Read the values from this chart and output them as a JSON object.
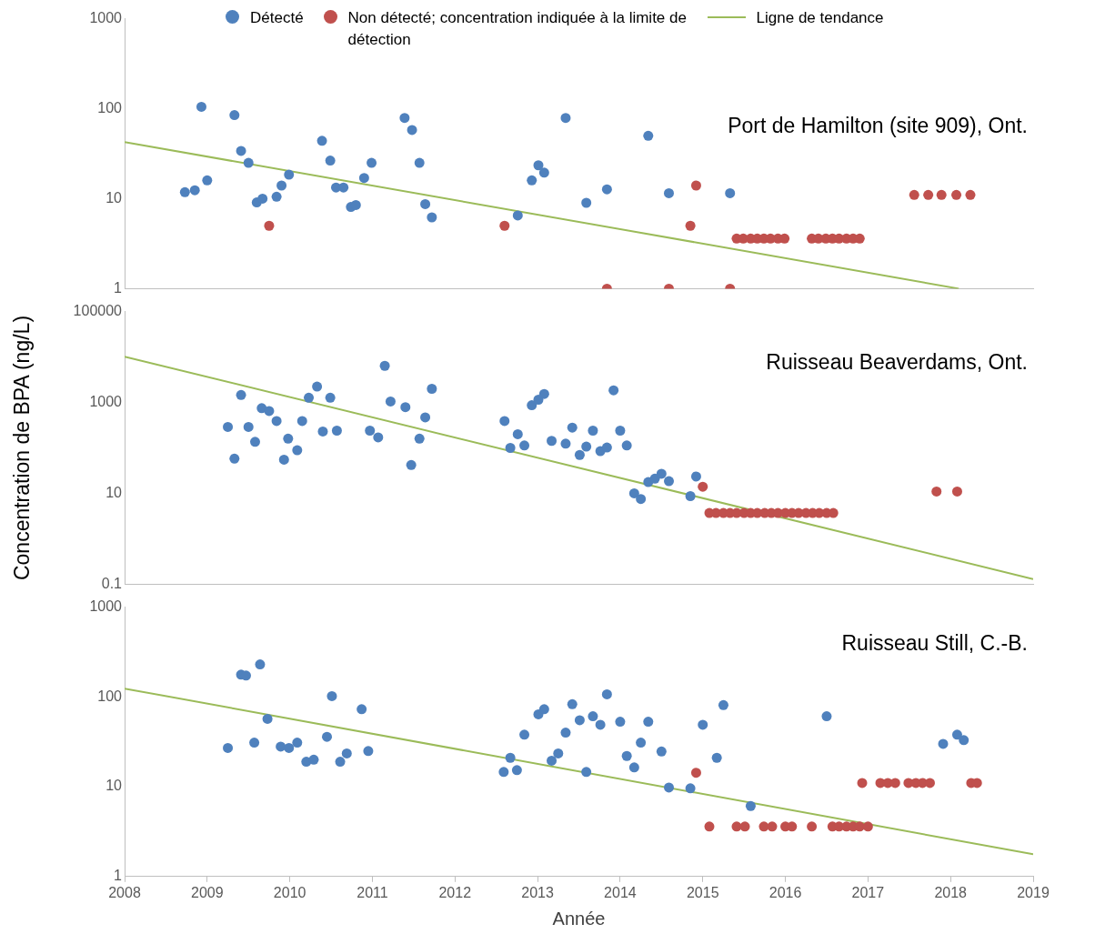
{
  "chart_data": [
    {
      "type": "scatter",
      "legend": "top",
      "marker": "circle",
      "log": "y",
      "tick_labels": "y",
      "xlim": [
        2008,
        2019
      ],
      "xticks": [
        2008,
        2009,
        2010,
        2011,
        2012,
        2013,
        2014,
        2015,
        2016,
        2017,
        2018,
        2019
      ],
      "ylim": [
        1,
        1000
      ],
      "yticks": [
        1,
        10,
        100,
        1000
      ],
      "annotations": [
        "Port de Hamilton (site 909), Ont."
      ],
      "series": [
        {
          "name": "Détecté",
          "color": "#4f81bd",
          "x": [
            2008.73,
            2008.85,
            2008.93,
            2009.0,
            2009.33,
            2009.41,
            2009.5,
            2009.6,
            2009.67,
            2009.84,
            2009.9,
            2009.99,
            2010.39,
            2010.49,
            2010.56,
            2010.65,
            2010.74,
            2010.8,
            2010.9,
            2010.99,
            2011.39,
            2011.48,
            2011.57,
            2011.64,
            2011.72,
            2012.76,
            2012.93,
            2013.01,
            2013.08,
            2013.34,
            2013.59,
            2013.84,
            2014.34,
            2014.59,
            2015.33
          ],
          "values": [
            11.8,
            12.4,
            105,
            16,
            85,
            34,
            25,
            9.1,
            10,
            10.5,
            14,
            18.5,
            44,
            26.5,
            13.3,
            13.3,
            8.1,
            8.5,
            17,
            25,
            79,
            58,
            25,
            8.7,
            6.2,
            6.5,
            16,
            23.5,
            19.5,
            79,
            9,
            12.7,
            50,
            11.5,
            11.5
          ]
        },
        {
          "name": "Non détecté; concentration indiquée à la limite de détection",
          "color": "#c0504d",
          "x": [
            2009.75,
            2012.6,
            2013.84,
            2014.59,
            2014.85,
            2014.92,
            2015.33,
            2015.41,
            2015.49,
            2015.58,
            2015.66,
            2015.74,
            2015.82,
            2015.91,
            2015.99,
            2016.32,
            2016.4,
            2016.49,
            2016.57,
            2016.65,
            2016.74,
            2016.82,
            2016.9,
            2017.56,
            2017.73,
            2017.89,
            2018.07,
            2018.24
          ],
          "values": [
            5,
            5,
            1,
            1,
            5,
            14,
            1,
            3.6,
            3.6,
            3.6,
            3.6,
            3.6,
            3.6,
            3.6,
            3.6,
            3.6,
            3.6,
            3.6,
            3.6,
            3.6,
            3.6,
            3.6,
            3.6,
            11,
            11,
            11,
            11,
            11
          ]
        },
        {
          "name": "Ligne de tendance",
          "type": "line",
          "marker": "none",
          "line_style": "solid",
          "color": "#9bbb59",
          "x": [
            2008,
            2018.1
          ],
          "values": [
            42.6,
            1
          ]
        }
      ]
    },
    {
      "type": "scatter",
      "marker": "circle",
      "log": "y",
      "tick_labels": "y",
      "ylabel": "Concentration de BPA (ng/L)",
      "xlim": [
        2008,
        2019
      ],
      "xticks": [
        2008,
        2009,
        2010,
        2011,
        2012,
        2013,
        2014,
        2015,
        2016,
        2017,
        2018,
        2019
      ],
      "ylim": [
        0.1,
        100000
      ],
      "yticks": [
        0.1,
        10,
        1000,
        100000
      ],
      "annotations": [
        "Ruisseau Beaverdams, Ont."
      ],
      "series": [
        {
          "color": "#4f81bd",
          "x": [
            2009.25,
            2009.33,
            2009.41,
            2009.5,
            2009.58,
            2009.66,
            2009.75,
            2009.84,
            2009.93,
            2009.98,
            2010.09,
            2010.15,
            2010.23,
            2010.33,
            2010.4,
            2010.49,
            2010.57,
            2010.97,
            2011.07,
            2011.15,
            2011.22,
            2011.4,
            2011.47,
            2011.57,
            2011.64,
            2011.72,
            2012.6,
            2012.67,
            2012.76,
            2012.84,
            2012.93,
            2013.01,
            2013.08,
            2013.17,
            2013.34,
            2013.42,
            2013.51,
            2013.59,
            2013.67,
            2013.76,
            2013.84,
            2013.92,
            2014.0,
            2014.08,
            2014.17,
            2014.25,
            2014.34,
            2014.42,
            2014.5,
            2014.59,
            2014.85,
            2014.92
          ],
          "values": [
            290,
            58,
            1460,
            290,
            136,
            750,
            650,
            390,
            55,
            160,
            89,
            390,
            1270,
            2240,
            230,
            1270,
            240,
            240,
            170,
            6400,
            1050,
            790,
            42,
            160,
            470,
            2000,
            390,
            100,
            200,
            113,
            870,
            1150,
            1540,
            143,
            124,
            280,
            70,
            107,
            240,
            85,
            102,
            1850,
            240,
            113,
            10,
            7.5,
            17.7,
            21,
            27,
            18.5,
            8.7,
            23.5
          ]
        },
        {
          "color": "#c0504d",
          "x": [
            2015.0,
            2015.08,
            2015.16,
            2015.25,
            2015.33,
            2015.41,
            2015.5,
            2015.58,
            2015.66,
            2015.75,
            2015.83,
            2015.91,
            2016.0,
            2016.08,
            2016.16,
            2016.25,
            2016.33,
            2016.41,
            2016.5,
            2016.58,
            2017.83,
            2018.08
          ],
          "values": [
            14,
            3.7,
            3.7,
            3.7,
            3.7,
            3.7,
            3.7,
            3.7,
            3.7,
            3.7,
            3.7,
            3.7,
            3.7,
            3.7,
            3.7,
            3.7,
            3.7,
            3.7,
            3.7,
            3.7,
            11,
            11
          ]
        },
        {
          "type": "line",
          "marker": "none",
          "line_style": "solid",
          "color": "#9bbb59",
          "x": [
            2008,
            2019
          ],
          "values": [
            10200,
            0.13
          ]
        }
      ]
    },
    {
      "type": "scatter",
      "marker": "circle",
      "log": "y",
      "xlabel": "Année",
      "xlim": [
        2008,
        2019
      ],
      "xticks": [
        2008,
        2009,
        2010,
        2011,
        2012,
        2013,
        2014,
        2015,
        2016,
        2017,
        2018,
        2019
      ],
      "ylim": [
        1,
        1000
      ],
      "yticks": [
        1,
        10,
        100,
        1000
      ],
      "annotations": [
        "Ruisseau Still, C.-B."
      ],
      "series": [
        {
          "color": "#4f81bd",
          "x": [
            2009.25,
            2009.41,
            2009.47,
            2009.57,
            2009.64,
            2009.73,
            2009.89,
            2009.99,
            2010.09,
            2010.2,
            2010.29,
            2010.45,
            2010.51,
            2010.61,
            2010.69,
            2010.87,
            2010.95,
            2012.59,
            2012.67,
            2012.75,
            2012.84,
            2013.01,
            2013.08,
            2013.17,
            2013.25,
            2013.34,
            2013.42,
            2013.51,
            2013.59,
            2013.67,
            2013.76,
            2013.84,
            2014.0,
            2014.08,
            2014.17,
            2014.25,
            2014.34,
            2014.5,
            2014.59,
            2014.85,
            2015.0,
            2015.17,
            2015.25,
            2015.58,
            2016.5,
            2017.91,
            2018.08,
            2018.16
          ],
          "values": [
            27,
            177,
            173,
            31,
            230,
            57,
            28,
            27,
            31,
            19,
            20,
            36,
            102,
            19,
            23.5,
            73,
            25,
            14.6,
            21,
            15.3,
            38,
            64,
            73,
            19.5,
            23.5,
            40,
            83,
            55,
            14.6,
            61,
            49,
            107,
            53,
            22,
            16.4,
            31,
            53,
            24.7,
            9.8,
            9.6,
            49,
            21,
            81,
            6.1,
            61,
            30,
            38,
            33
          ]
        },
        {
          "color": "#c0504d",
          "x": [
            2014.92,
            2015.08,
            2015.41,
            2015.51,
            2015.74,
            2015.84,
            2016.0,
            2016.08,
            2016.32,
            2016.57,
            2016.65,
            2016.74,
            2016.82,
            2016.9,
            2017.0,
            2016.93,
            2017.15,
            2017.24,
            2017.33,
            2017.49,
            2017.58,
            2017.66,
            2017.75,
            2018.25,
            2018.32
          ],
          "values": [
            14.3,
            3.6,
            3.6,
            3.6,
            3.6,
            3.6,
            3.6,
            3.6,
            3.6,
            3.6,
            3.6,
            3.6,
            3.6,
            3.6,
            3.6,
            11,
            11,
            11,
            11,
            11,
            11,
            11,
            11,
            11,
            11
          ]
        },
        {
          "type": "line",
          "marker": "none",
          "line_style": "solid",
          "color": "#9bbb59",
          "x": [
            2008,
            2019
          ],
          "values": [
            124,
            1.77
          ]
        }
      ]
    }
  ]
}
